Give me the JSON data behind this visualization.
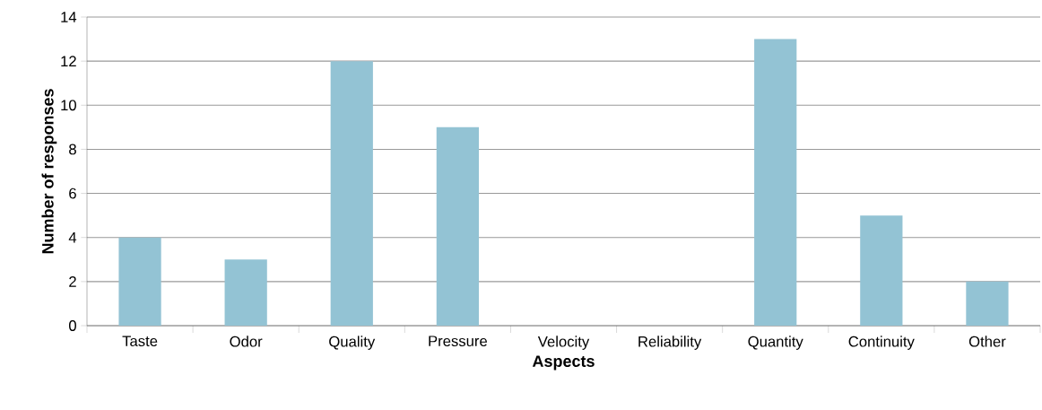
{
  "chart_data": {
    "type": "bar",
    "xlabel": "Aspects",
    "ylabel": "Number of responses",
    "categories": [
      "Taste",
      "Odor",
      "Quality",
      "Pressure",
      "Velocity",
      "Reliability",
      "Quantity",
      "Continuity",
      "Other"
    ],
    "values": [
      4,
      3,
      12,
      9,
      0,
      0,
      13,
      5,
      2
    ],
    "color": "#93c3d4",
    "ylim": [
      0,
      14
    ],
    "yticks": [
      0,
      2,
      4,
      6,
      8,
      10,
      12,
      14
    ],
    "grid": "y"
  }
}
